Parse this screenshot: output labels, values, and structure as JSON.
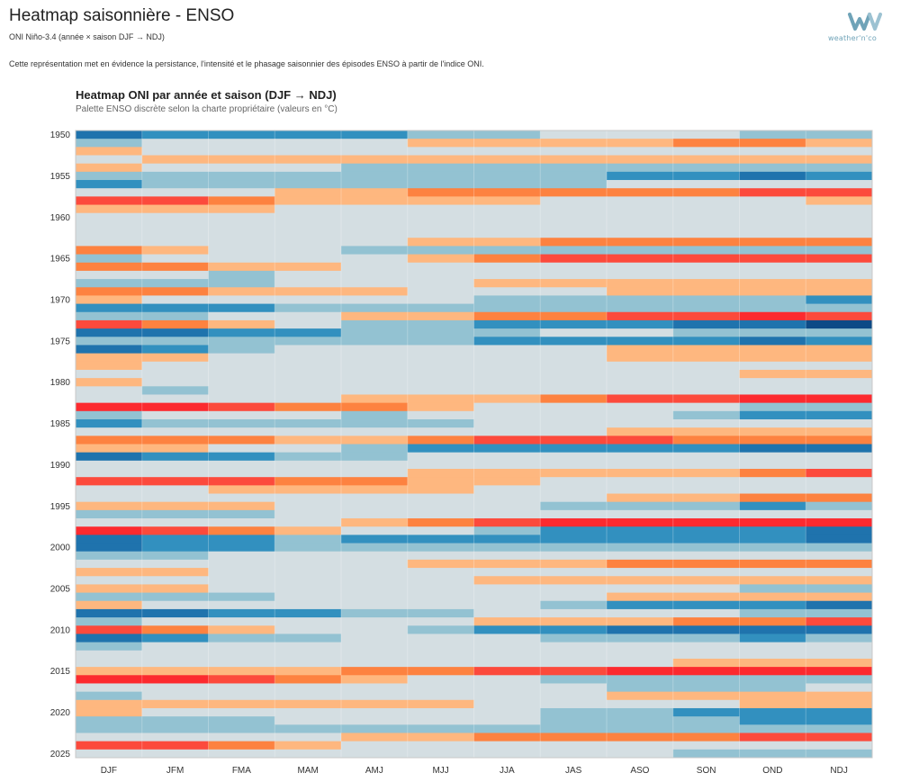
{
  "header": {
    "title": "Heatmap saisonnière - ENSO",
    "subtitle": "ONI Niño-3.4 (année × saison DJF → NDJ)",
    "description": "Cette représentation met en évidence la persistance, l'intensité et le phasage saisonnier des épisodes ENSO à partir de l'indice ONI.",
    "logo_text": "weather'n'co"
  },
  "colors": {
    "plus4": "#fc2a2f",
    "plus3": "#fc4a3c",
    "plus2": "#fd8240",
    "plus1": "#feb77f",
    "zero": "#d4dee2",
    "minus1": "#93c2d2",
    "minus2": "#3290bf",
    "minus3": "#1f73ad",
    "minus4": "#0d4a86",
    "logo": "#6fa3b8"
  },
  "chart_data": {
    "type": "heatmap",
    "title": "Heatmap ONI par année et saison (DJF → NDJ)",
    "subtitle": "Palette ENSO discrète selon la charte propriétaire (valeurs en °C)",
    "x_categories": [
      "DJF",
      "JFM",
      "FMA",
      "MAM",
      "AMJ",
      "MJJ",
      "JJA",
      "JAS",
      "ASO",
      "SON",
      "OND",
      "NDJ"
    ],
    "y_range": [
      1950,
      2026
    ],
    "y_ticks": [
      1950,
      1955,
      1960,
      1965,
      1970,
      1975,
      1980,
      1985,
      1990,
      1995,
      2000,
      2005,
      2010,
      2015,
      2020,
      2025
    ],
    "value_scale": "discrete levels -4..4 (class of ONI)",
    "rows": {
      "1950": [
        -3,
        -2,
        -2,
        -2,
        -2,
        -1,
        -1,
        0,
        0,
        0,
        -1,
        -1
      ],
      "1951": [
        -1,
        0,
        0,
        0,
        0,
        1,
        1,
        1,
        1,
        2,
        2,
        1
      ],
      "1952": [
        1,
        0,
        0,
        0,
        0,
        0,
        0,
        0,
        0,
        0,
        0,
        0
      ],
      "1953": [
        0,
        1,
        1,
        1,
        1,
        1,
        1,
        1,
        1,
        1,
        1,
        1
      ],
      "1954": [
        1,
        0,
        0,
        0,
        -1,
        -1,
        -1,
        -1,
        -1,
        -1,
        -1,
        -1
      ],
      "1955": [
        -1,
        -1,
        -1,
        -1,
        -1,
        -1,
        -1,
        -1,
        -2,
        -2,
        -3,
        -2
      ],
      "1956": [
        -2,
        -1,
        -1,
        -1,
        -1,
        -1,
        -1,
        -1,
        0,
        0,
        0,
        0
      ],
      "1957": [
        0,
        0,
        0,
        1,
        1,
        2,
        2,
        2,
        2,
        2,
        3,
        3
      ],
      "1958": [
        3,
        3,
        2,
        1,
        1,
        1,
        1,
        0,
        0,
        0,
        0,
        1
      ],
      "1959": [
        1,
        1,
        1,
        0,
        0,
        0,
        0,
        0,
        0,
        0,
        0,
        0
      ],
      "1960": [
        0,
        0,
        0,
        0,
        0,
        0,
        0,
        0,
        0,
        0,
        0,
        0
      ],
      "1961": [
        0,
        0,
        0,
        0,
        0,
        0,
        0,
        0,
        0,
        0,
        0,
        0
      ],
      "1962": [
        0,
        0,
        0,
        0,
        0,
        0,
        0,
        0,
        0,
        0,
        0,
        0
      ],
      "1963": [
        0,
        0,
        0,
        0,
        0,
        1,
        1,
        2,
        2,
        2,
        2,
        2
      ],
      "1964": [
        2,
        1,
        0,
        0,
        -1,
        -1,
        -1,
        -1,
        -1,
        -1,
        -1,
        -1
      ],
      "1965": [
        -1,
        0,
        0,
        0,
        0,
        1,
        2,
        3,
        3,
        3,
        3,
        3
      ],
      "1966": [
        2,
        2,
        1,
        1,
        0,
        0,
        0,
        0,
        0,
        0,
        0,
        0
      ],
      "1967": [
        0,
        0,
        -1,
        0,
        0,
        0,
        0,
        0,
        0,
        0,
        0,
        0
      ],
      "1968": [
        -1,
        -1,
        -1,
        0,
        0,
        0,
        1,
        1,
        1,
        1,
        1,
        1
      ],
      "1969": [
        2,
        2,
        1,
        1,
        1,
        0,
        0,
        0,
        1,
        1,
        1,
        1
      ],
      "1970": [
        1,
        0,
        0,
        0,
        0,
        0,
        -1,
        -1,
        -1,
        -1,
        -1,
        -2
      ],
      "1971": [
        -2,
        -2,
        -2,
        -1,
        -1,
        -1,
        -1,
        -1,
        -1,
        -1,
        -1,
        -1
      ],
      "1972": [
        -1,
        -1,
        0,
        0,
        1,
        1,
        2,
        2,
        3,
        3,
        4,
        3
      ],
      "1973": [
        3,
        2,
        1,
        0,
        -1,
        -1,
        -2,
        -2,
        -2,
        -3,
        -3,
        -4
      ],
      "1974": [
        -3,
        -3,
        -2,
        -2,
        -1,
        -1,
        -1,
        0,
        0,
        -1,
        -1,
        -1
      ],
      "1975": [
        -1,
        -1,
        -1,
        -1,
        -1,
        -1,
        -2,
        -2,
        -2,
        -2,
        -3,
        -2
      ],
      "1976": [
        -3,
        -2,
        -1,
        0,
        0,
        0,
        0,
        0,
        1,
        1,
        1,
        1
      ],
      "1977": [
        1,
        1,
        0,
        0,
        0,
        0,
        0,
        0,
        1,
        1,
        1,
        1
      ],
      "1978": [
        1,
        0,
        0,
        0,
        0,
        0,
        0,
        0,
        0,
        0,
        0,
        0
      ],
      "1979": [
        0,
        0,
        0,
        0,
        0,
        0,
        0,
        0,
        0,
        0,
        1,
        1
      ],
      "1980": [
        1,
        0,
        0,
        0,
        0,
        0,
        0,
        0,
        0,
        0,
        0,
        0
      ],
      "1981": [
        0,
        -1,
        0,
        0,
        0,
        0,
        0,
        0,
        0,
        0,
        0,
        0
      ],
      "1982": [
        0,
        0,
        0,
        0,
        1,
        1,
        1,
        2,
        3,
        3,
        4,
        4
      ],
      "1983": [
        4,
        4,
        3,
        2,
        2,
        1,
        0,
        0,
        0,
        0,
        -1,
        -1
      ],
      "1984": [
        -1,
        0,
        0,
        0,
        -1,
        0,
        0,
        0,
        0,
        -1,
        -2,
        -2
      ],
      "1985": [
        -2,
        -1,
        -1,
        -1,
        -1,
        -1,
        0,
        0,
        0,
        0,
        0,
        0
      ],
      "1986": [
        0,
        0,
        0,
        0,
        0,
        0,
        0,
        0,
        1,
        1,
        1,
        1
      ],
      "1987": [
        2,
        2,
        2,
        1,
        1,
        2,
        3,
        3,
        3,
        2,
        2,
        2
      ],
      "1988": [
        1,
        1,
        0,
        0,
        -1,
        -2,
        -2,
        -2,
        -2,
        -2,
        -3,
        -3
      ],
      "1989": [
        -3,
        -2,
        -2,
        -1,
        -1,
        0,
        0,
        0,
        0,
        0,
        0,
        0
      ],
      "1990": [
        0,
        0,
        0,
        0,
        0,
        0,
        0,
        0,
        0,
        0,
        0,
        0
      ],
      "1991": [
        0,
        0,
        0,
        0,
        0,
        1,
        1,
        1,
        1,
        1,
        2,
        3
      ],
      "1992": [
        3,
        3,
        3,
        2,
        2,
        1,
        1,
        0,
        0,
        0,
        0,
        0
      ],
      "1993": [
        0,
        0,
        1,
        1,
        1,
        1,
        0,
        0,
        0,
        0,
        0,
        0
      ],
      "1994": [
        0,
        0,
        0,
        0,
        0,
        0,
        0,
        0,
        1,
        1,
        2,
        2
      ],
      "1995": [
        1,
        1,
        1,
        0,
        0,
        0,
        0,
        -1,
        -1,
        -1,
        -2,
        -1
      ],
      "1996": [
        -1,
        -1,
        -1,
        0,
        0,
        0,
        0,
        0,
        0,
        0,
        0,
        0
      ],
      "1997": [
        0,
        0,
        0,
        0,
        1,
        2,
        3,
        4,
        4,
        4,
        4,
        4
      ],
      "1998": [
        4,
        3,
        2,
        1,
        0,
        0,
        -1,
        -2,
        -2,
        -2,
        -2,
        -3
      ],
      "1999": [
        -3,
        -2,
        -2,
        -1,
        -2,
        -2,
        -2,
        -2,
        -2,
        -2,
        -2,
        -3
      ],
      "2000": [
        -3,
        -2,
        -2,
        -1,
        -1,
        -1,
        -1,
        -1,
        -1,
        -1,
        -1,
        -1
      ],
      "2001": [
        -1,
        -1,
        0,
        0,
        0,
        0,
        0,
        0,
        0,
        0,
        0,
        0
      ],
      "2002": [
        0,
        0,
        0,
        0,
        0,
        1,
        1,
        1,
        2,
        2,
        2,
        2
      ],
      "2003": [
        1,
        1,
        0,
        0,
        0,
        0,
        0,
        0,
        0,
        0,
        0,
        0
      ],
      "2004": [
        0,
        0,
        0,
        0,
        0,
        0,
        1,
        1,
        1,
        1,
        1,
        1
      ],
      "2005": [
        1,
        1,
        0,
        0,
        0,
        0,
        0,
        0,
        0,
        0,
        -1,
        -1
      ],
      "2006": [
        -1,
        -1,
        -1,
        0,
        0,
        0,
        0,
        0,
        1,
        1,
        1,
        1
      ],
      "2007": [
        1,
        0,
        0,
        0,
        0,
        0,
        0,
        -1,
        -2,
        -2,
        -2,
        -3
      ],
      "2008": [
        -3,
        -3,
        -2,
        -2,
        -1,
        -1,
        0,
        0,
        0,
        0,
        -1,
        -1
      ],
      "2009": [
        -1,
        0,
        0,
        0,
        0,
        0,
        1,
        1,
        1,
        2,
        2,
        3
      ],
      "2010": [
        3,
        2,
        1,
        0,
        0,
        -1,
        -2,
        -2,
        -3,
        -3,
        -3,
        -3
      ],
      "2011": [
        -3,
        -2,
        -1,
        -1,
        0,
        0,
        0,
        -1,
        -1,
        -1,
        -2,
        -1
      ],
      "2012": [
        -1,
        0,
        0,
        0,
        0,
        0,
        0,
        0,
        0,
        0,
        0,
        0
      ],
      "2013": [
        0,
        0,
        0,
        0,
        0,
        0,
        0,
        0,
        0,
        0,
        0,
        0
      ],
      "2014": [
        0,
        0,
        0,
        0,
        0,
        0,
        0,
        0,
        0,
        1,
        1,
        1
      ],
      "2015": [
        1,
        1,
        1,
        1,
        2,
        2,
        3,
        3,
        4,
        4,
        4,
        4
      ],
      "2016": [
        4,
        4,
        3,
        2,
        1,
        0,
        0,
        -1,
        -1,
        -1,
        -1,
        -1
      ],
      "2017": [
        0,
        0,
        0,
        0,
        0,
        0,
        0,
        0,
        -1,
        -1,
        -1,
        0
      ],
      "2018": [
        -1,
        0,
        0,
        0,
        0,
        0,
        0,
        0,
        1,
        1,
        1,
        1
      ],
      "2019": [
        1,
        1,
        1,
        1,
        1,
        1,
        0,
        0,
        0,
        0,
        1,
        1
      ],
      "2020": [
        1,
        0,
        0,
        0,
        0,
        0,
        0,
        -1,
        -1,
        -2,
        -2,
        -2
      ],
      "2021": [
        -1,
        -1,
        -1,
        0,
        0,
        0,
        0,
        -1,
        -1,
        -1,
        -2,
        -2
      ],
      "2022": [
        -1,
        -1,
        -1,
        -1,
        -1,
        -1,
        -1,
        -1,
        -1,
        -1,
        -1,
        -1
      ],
      "2023": [
        0,
        0,
        0,
        0,
        1,
        1,
        2,
        2,
        2,
        2,
        3,
        3
      ],
      "2024": [
        3,
        3,
        2,
        1,
        0,
        0,
        0,
        0,
        0,
        0,
        0,
        0
      ],
      "2025": [
        0,
        0,
        0,
        0,
        0,
        0,
        0,
        0,
        0,
        -1,
        -1,
        -1
      ]
    }
  }
}
